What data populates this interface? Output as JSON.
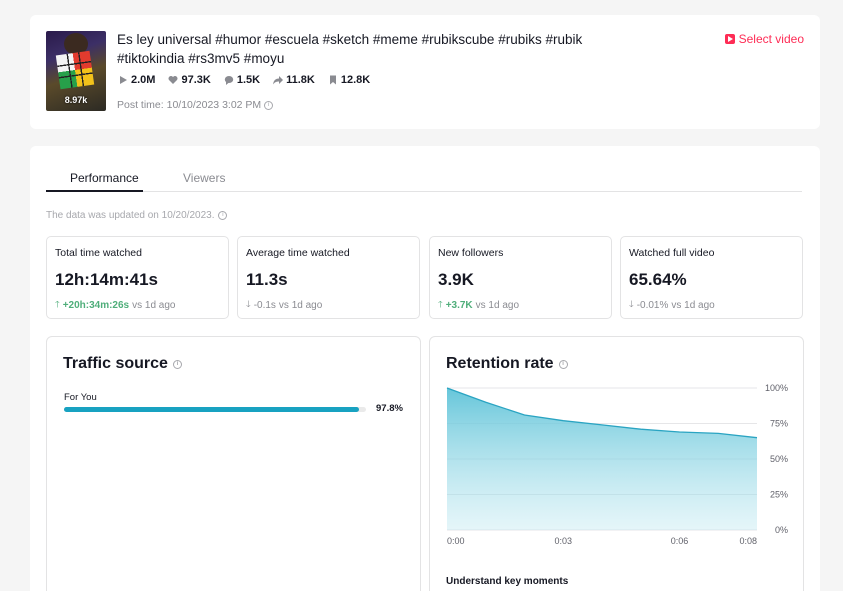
{
  "video": {
    "title": "Es ley universal #humor #escuela #sketch #meme #rubikscube #rubiks #rubik #tiktokindia #rs3mv5 #moyu",
    "thumbnail_count": "8.97k",
    "stats": [
      {
        "icon": "play-icon",
        "value": "2.0M"
      },
      {
        "icon": "heart-icon",
        "value": "97.3K"
      },
      {
        "icon": "comment-icon",
        "value": "1.5K"
      },
      {
        "icon": "share-icon",
        "value": "11.8K"
      },
      {
        "icon": "bookmark-icon",
        "value": "12.8K"
      }
    ],
    "post_time": "Post time: 10/10/2023 3:02 PM",
    "select_label": "Select video"
  },
  "tabs": {
    "performance": "Performance",
    "viewers": "Viewers"
  },
  "updated_text": "The data was updated on 10/20/2023.",
  "metrics": [
    {
      "label": "Total time watched",
      "value": "12h:14m:41s",
      "delta": "+20h:34m:26s",
      "direction": "up",
      "suffix": "vs 1d ago"
    },
    {
      "label": "Average time watched",
      "value": "11.3s",
      "delta": "-0.1s",
      "direction": "down",
      "suffix": "vs 1d ago"
    },
    {
      "label": "New followers",
      "value": "3.9K",
      "delta": "+3.7K",
      "direction": "up",
      "suffix": "vs 1d ago"
    },
    {
      "label": "Watched full video",
      "value": "65.64%",
      "delta": "-0.01%",
      "direction": "down",
      "suffix": "vs 1d ago"
    }
  ],
  "traffic": {
    "title": "Traffic source",
    "sources": [
      {
        "label": "For You",
        "percent": 97.8,
        "percent_text": "97.8%"
      }
    ]
  },
  "retention": {
    "title": "Retention rate",
    "understand": "Understand key moments"
  },
  "colors": {
    "accent": "#fe2c55",
    "bar": "#18a2c1",
    "positive": "#4fae7a"
  },
  "chart_data": {
    "type": "area",
    "title": "Retention rate",
    "x": [
      0,
      1,
      2,
      3,
      4,
      5,
      6,
      7,
      8
    ],
    "x_unit": "seconds",
    "xticks": [
      "0:00",
      "0:03",
      "0:06",
      "0:08"
    ],
    "xtick_values": [
      0,
      3,
      6,
      8
    ],
    "y": [
      100,
      90,
      81,
      77,
      74,
      71,
      69,
      68,
      65
    ],
    "yticks": [
      "0%",
      "25%",
      "50%",
      "75%",
      "100%"
    ],
    "ylim": [
      0,
      100
    ],
    "grid": true
  }
}
